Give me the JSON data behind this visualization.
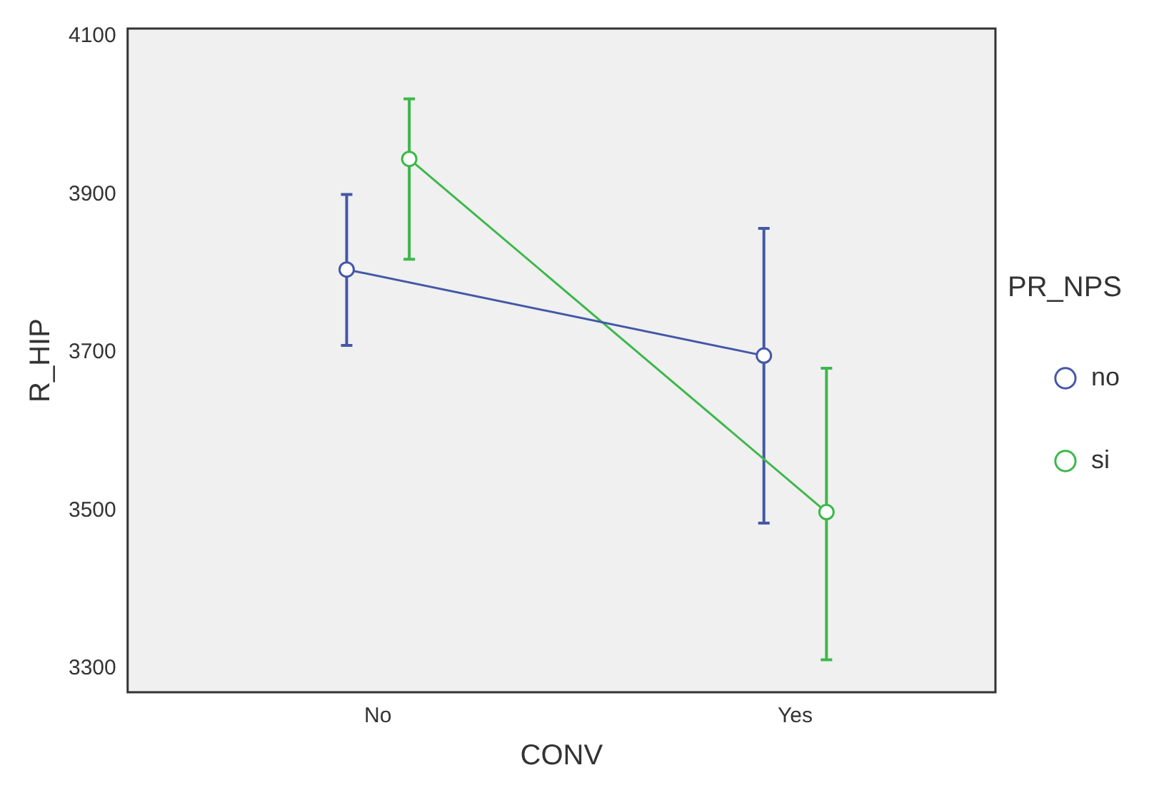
{
  "chart_data": {
    "type": "line",
    "xlabel": "CONV",
    "ylabel": "R_HIP",
    "legend_title": "PR_NPS",
    "categories": [
      "No",
      "Yes"
    ],
    "series": [
      {
        "name": "no",
        "color": "#4458a8",
        "values": [
          3805,
          3696
        ],
        "errors": [
          [
            3709,
            3900
          ],
          [
            3484,
            3857
          ]
        ]
      },
      {
        "name": "si",
        "color": "#3cb84a",
        "values": [
          3945,
          3498
        ],
        "errors": [
          [
            3818,
            4021
          ],
          [
            3311,
            3680
          ]
        ]
      }
    ],
    "ylim": [
      3270,
      4110
    ],
    "yticks": [
      3300,
      3500,
      3700,
      3900,
      4100
    ],
    "grid": false,
    "legend": "right",
    "marker": "circle",
    "line_style": "solid"
  }
}
